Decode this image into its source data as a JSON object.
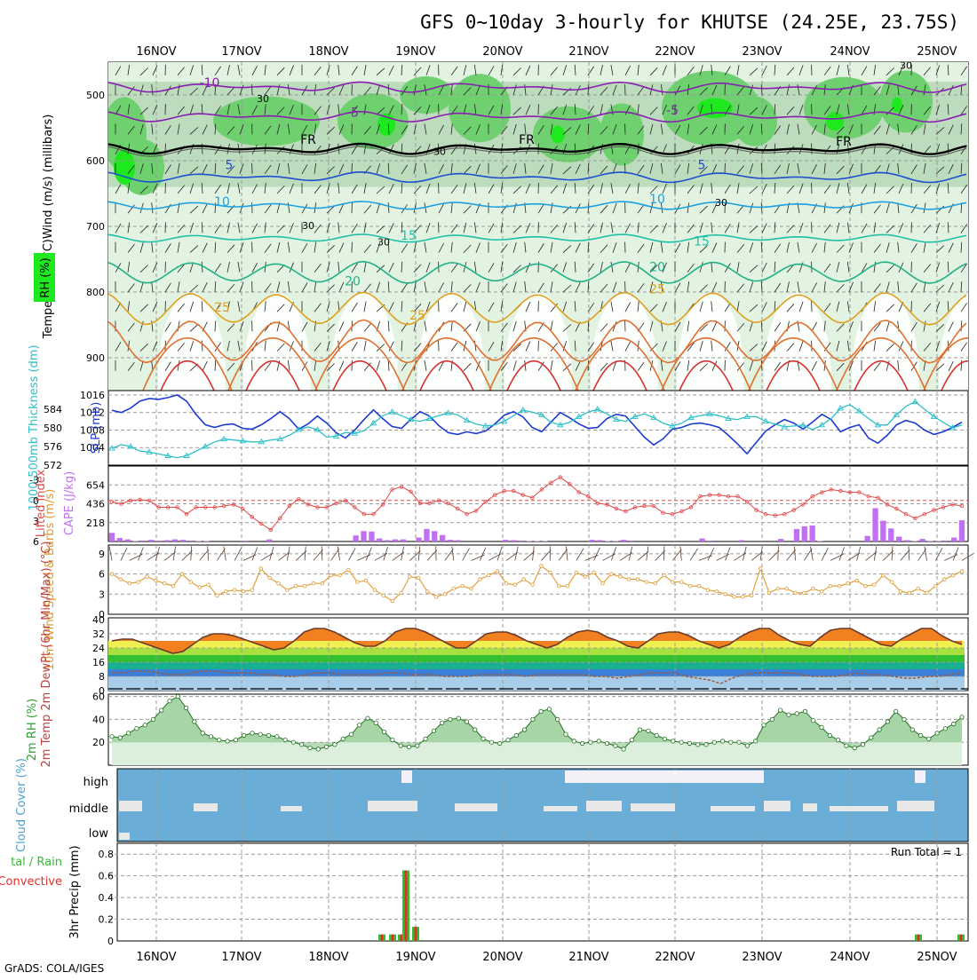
{
  "header": {
    "title": "GFS 0~10day 3-hourly for KHUTSE (24.25E, 23.75S)",
    "footer": "GrADS: COLA/IGES",
    "run_total": "Run Total = 1"
  },
  "colors": {
    "rh_light": "#e2f3e2",
    "rh_mid": "#b4d4b4",
    "rh_high": "#6fd06f",
    "rh_max": "#1ee81e",
    "slp": "#1c3ad0",
    "thickness": "#2cc0c8",
    "lifted_index": "#e04848",
    "cape": "#c070f0",
    "wind_speed": "#e09a30",
    "barb": "#5a3e30",
    "rh2m": "#7cc07c",
    "cloud": "#6aaed8",
    "precip_total": "#30c030",
    "precip_conv": "#e03030",
    "grid": "#9a9a9a"
  },
  "chart_data": [
    {
      "type": "heatmap",
      "name": "upper-air",
      "ylabel": "Temperature (°C)Wind (m/s)  (millibars)",
      "legend": "RH (%)",
      "ylim": [
        950,
        450
      ],
      "yticks": [
        "500",
        "600",
        "700",
        "800",
        "900"
      ],
      "xticks": [
        "16NOV",
        "17NOV",
        "18NOV",
        "19NOV",
        "20NOV",
        "21NOV",
        "22NOV",
        "23NOV",
        "24NOV",
        "25NOV"
      ],
      "temp_contour_labels": [
        "-10",
        "-5",
        "-5",
        "FR",
        "FR",
        "FR",
        "5",
        "5",
        "10",
        "10",
        "15",
        "15",
        "20",
        "20",
        "25",
        "25",
        "25",
        "30",
        "30",
        "30",
        "30",
        "30",
        "30"
      ],
      "isotherms": [
        {
          "label": "-10",
          "pressure": 488,
          "color": "#8a1eb0"
        },
        {
          "label": "-5",
          "pressure": 533,
          "color": "#8a1eb0"
        },
        {
          "label": "FR",
          "pressure": 582,
          "color": "#000000"
        },
        {
          "label": "5",
          "pressure": 625,
          "color": "#1e50d0"
        },
        {
          "label": "10",
          "pressure": 668,
          "color": "#1ea0e0"
        },
        {
          "label": "15",
          "pressure": 718,
          "color": "#20c0a8"
        },
        {
          "label": "20",
          "pressure": 770,
          "color": "#20b088"
        },
        {
          "label": "25",
          "pressure": 825,
          "color": "#e0a020"
        },
        {
          "label": "30",
          "pressure": 875,
          "color": "#e07030"
        }
      ]
    },
    {
      "type": "line",
      "name": "slp-thickness",
      "y_left_label": "1000-500mb Thickness (dm)",
      "y_left_ticks": [
        "584",
        "580",
        "576",
        "572"
      ],
      "y_left_range": [
        572,
        588
      ],
      "y_right_label": "SLP (mb)",
      "y_right_ticks": [
        "1016",
        "1012",
        "1008",
        "1004"
      ],
      "y_right_range": [
        1000,
        1017
      ],
      "series": [
        {
          "name": "SLP (mb)",
          "values": [
            1012.5,
            1012.0,
            1013.0,
            1014.6,
            1015.2,
            1015.0,
            1015.4,
            1016.0,
            1014.6,
            1011.6,
            1009.2,
            1008.6,
            1009.2,
            1009.4,
            1008.4,
            1008.2,
            1009.2,
            1010.6,
            1012.2,
            1010.6,
            1008.2,
            1009.4,
            1011.2,
            1009.6,
            1007.4,
            1006.2,
            1008.0,
            1010.4,
            1012.6,
            1010.6,
            1008.8,
            1008.4,
            1010.4,
            1012.2,
            1011.2,
            1009.0,
            1007.4,
            1007.0,
            1007.6,
            1007.2,
            1007.8,
            1009.4,
            1011.4,
            1012.2,
            1011.0,
            1008.6,
            1007.6,
            1009.8,
            1012.0,
            1010.8,
            1009.4,
            1008.4,
            1008.6,
            1010.6,
            1011.6,
            1011.2,
            1008.8,
            1006.4,
            1004.6,
            1006.0,
            1008.2,
            1008.6,
            1009.4,
            1009.6,
            1009.2,
            1008.6,
            1006.8,
            1004.8,
            1002.6,
            1005.2,
            1007.8,
            1009.2,
            1010.4,
            1009.6,
            1008.2,
            1009.8,
            1011.6,
            1010.4,
            1007.6,
            1008.6,
            1009.2,
            1006.2,
            1005.0,
            1006.8,
            1009.2,
            1010.2,
            1009.6,
            1008.0,
            1007.0,
            1007.6,
            1008.6,
            1009.8
          ]
        },
        {
          "name": "1000-500mb Thickness (dm)",
          "values": [
            575.6,
            576.4,
            576.0,
            575.0,
            574.8,
            574.4,
            574.0,
            573.6,
            574.0,
            575.0,
            576.0,
            577.0,
            577.6,
            577.4,
            577.2,
            577.0,
            577.0,
            577.4,
            577.6,
            578.4,
            579.6,
            580.2,
            579.6,
            578.0,
            578.2,
            579.0,
            578.8,
            579.4,
            581.0,
            582.6,
            583.4,
            582.6,
            581.8,
            581.4,
            582.0,
            582.6,
            583.2,
            582.8,
            581.6,
            580.8,
            580.4,
            580.6,
            581.4,
            582.6,
            583.8,
            583.4,
            582.8,
            581.2,
            580.6,
            581.2,
            582.4,
            583.4,
            584.0,
            583.0,
            581.8,
            581.4,
            582.4,
            583.0,
            582.2,
            581.0,
            580.4,
            581.0,
            582.2,
            582.6,
            583.0,
            582.6,
            582.0,
            581.8,
            582.4,
            582.4,
            581.4,
            580.8,
            580.2,
            580.4,
            580.6,
            579.6,
            580.6,
            582.0,
            584.2,
            585.0,
            583.6,
            582.0,
            580.6,
            580.6,
            582.8,
            584.6,
            585.6,
            584.0,
            582.4,
            581.2,
            580.0,
            580.6
          ]
        }
      ]
    },
    {
      "type": "bar",
      "name": "lifted-index-cape",
      "y_left_label": "Lifted Index",
      "y_left_ticks": [
        "-3",
        "0",
        "3",
        "6"
      ],
      "y_right_label": "CAPE (J/kg)",
      "y_right_ticks": [
        "654",
        "436",
        "218"
      ],
      "series": [
        {
          "name": "Lifted Index",
          "values": [
            0.2,
            0.5,
            0.0,
            -0.1,
            0.0,
            1.0,
            1.0,
            1.0,
            2.0,
            1.0,
            1.0,
            1.0,
            0.8,
            0.6,
            1.2,
            2.4,
            3.4,
            4.3,
            2.6,
            0.8,
            -0.2,
            0.6,
            1.0,
            1.0,
            0.4,
            0.0,
            1.0,
            2.0,
            2.0,
            0.6,
            -1.6,
            -2.0,
            -1.3,
            0.4,
            0.4,
            0.0,
            0.4,
            1.2,
            2.0,
            1.5,
            0.2,
            -0.8,
            -1.4,
            -1.4,
            -0.8,
            -0.4,
            -1.6,
            -2.6,
            -3.4,
            -2.4,
            -1.2,
            -0.6,
            0.4,
            0.6,
            1.2,
            1.6,
            1.0,
            0.8,
            0.8,
            1.8,
            2.0,
            1.6,
            1.0,
            -0.6,
            -0.8,
            -0.8,
            -0.6,
            -0.6,
            0.2,
            1.4,
            2.0,
            2.2,
            2.0,
            1.4,
            0.6,
            -0.6,
            -1.2,
            -1.6,
            -1.4,
            -1.2,
            -1.2,
            -0.6,
            -0.4,
            0.6,
            1.2,
            2.0,
            2.6,
            2.0,
            1.4,
            1.0,
            0.6,
            0.8
          ]
        },
        {
          "name": "CAPE (J/kg)",
          "values": [
            100,
            40,
            25,
            5,
            10,
            20,
            10,
            15,
            25,
            20,
            10,
            5,
            5,
            0,
            0,
            0,
            0,
            10,
            0,
            0,
            25,
            0,
            0,
            0,
            0,
            0,
            0,
            0,
            0,
            0,
            0,
            70,
            120,
            115,
            35,
            15,
            25,
            25,
            0,
            45,
            145,
            120,
            75,
            20,
            15,
            0,
            0,
            0,
            0,
            0,
            20,
            15,
            10,
            5,
            5,
            5,
            0,
            0,
            0,
            0,
            0,
            20,
            15,
            5,
            5,
            20,
            10,
            0,
            0,
            0,
            0,
            0,
            0,
            0,
            0,
            35,
            10,
            0,
            0,
            0,
            15,
            0,
            0,
            0,
            0,
            30,
            0,
            145,
            175,
            185,
            5,
            0,
            0,
            0,
            0,
            0,
            65,
            385,
            240,
            150,
            55,
            15,
            5,
            30,
            5,
            5,
            10,
            45,
            245
          ]
        }
      ]
    },
    {
      "type": "line",
      "name": "10m-wind",
      "ylabel": "10m Wind Speed & Barbs (m/s)",
      "yticks": [
        "9",
        "6",
        "3",
        "0"
      ],
      "ylim": [
        0,
        10
      ],
      "series": [
        {
          "name": "10m Wind Speed (m/s)",
          "values": [
            6.0,
            5.2,
            4.6,
            4.8,
            5.6,
            5.0,
            4.6,
            4.2,
            6.0,
            4.8,
            4.0,
            4.4,
            2.8,
            3.4,
            3.6,
            3.4,
            3.6,
            6.8,
            5.4,
            4.6,
            3.6,
            4.2,
            4.2,
            4.6,
            4.6,
            5.8,
            5.8,
            6.6,
            4.8,
            5.0,
            3.6,
            2.8,
            2.0,
            3.2,
            5.6,
            5.4,
            3.4,
            2.6,
            3.0,
            3.8,
            4.2,
            3.8,
            5.2,
            5.8,
            6.4,
            4.6,
            4.4,
            5.2,
            4.4,
            7.2,
            6.2,
            4.2,
            4.2,
            6.2,
            5.6,
            6.2,
            4.6,
            6.0,
            5.6,
            5.2,
            5.2,
            4.8,
            4.6,
            5.8,
            4.8,
            4.8,
            4.2,
            4.2,
            3.6,
            3.4,
            3.0,
            2.6,
            2.6,
            2.8,
            6.8,
            3.2,
            3.8,
            3.8,
            3.2,
            3.2,
            3.8,
            3.4,
            4.2,
            4.2,
            4.6,
            5.0,
            4.2,
            4.4,
            5.8,
            4.8,
            3.4,
            3.2,
            3.8,
            3.2,
            4.2,
            5.2,
            5.8,
            6.4
          ]
        }
      ]
    },
    {
      "type": "area",
      "name": "2m-temp",
      "ylabel": "2m Temp 2m DewPt (6hr Min/Max) (°C)",
      "yticks": [
        "40",
        "32",
        "24",
        "16",
        "8",
        "0"
      ],
      "ylim": [
        0,
        40
      ],
      "series": [
        {
          "name": "2m Temp",
          "values": [
            28,
            29,
            29,
            27,
            25,
            23,
            21,
            22,
            26,
            30,
            32,
            32,
            31,
            29,
            27,
            25,
            23,
            24,
            28,
            33,
            35,
            35,
            33,
            30,
            27,
            25,
            25,
            28,
            33,
            35,
            35,
            33,
            30,
            27,
            24,
            24,
            28,
            32,
            33,
            33,
            31,
            28,
            26,
            24,
            26,
            30,
            33,
            34,
            33,
            30,
            28,
            25,
            24,
            28,
            32,
            33,
            33,
            31,
            28,
            26,
            24,
            26,
            30,
            33,
            35,
            35,
            31,
            28,
            26,
            25,
            30,
            34,
            35,
            35,
            32,
            29,
            26,
            25,
            29,
            32,
            35,
            35,
            31,
            28,
            26
          ]
        },
        {
          "name": "2m DewPt",
          "values": [
            10,
            10,
            11,
            11,
            10,
            9,
            9,
            10,
            11,
            11,
            10,
            10,
            10,
            9,
            9,
            8,
            8,
            9,
            10,
            10,
            9,
            9,
            9,
            9,
            10,
            10,
            9,
            9,
            9,
            8,
            8,
            8,
            9,
            9,
            9,
            9,
            8,
            9,
            9,
            9,
            9,
            9,
            8,
            8,
            7,
            8,
            9,
            10,
            10,
            10,
            8,
            7,
            6,
            4,
            7,
            9,
            10,
            10,
            10,
            10,
            9,
            8,
            8,
            8,
            9,
            10,
            9,
            9,
            8,
            7,
            7,
            8,
            8,
            9,
            10
          ]
        }
      ]
    },
    {
      "type": "area",
      "name": "2m-rh",
      "ylabel": "2m RH (%)",
      "yticks": [
        "60",
        "40",
        "20"
      ],
      "ylim": [
        0,
        60
      ],
      "series": [
        {
          "name": "2m RH (%)",
          "values": [
            25,
            24,
            28,
            32,
            35,
            40,
            48,
            56,
            60,
            50,
            38,
            28,
            25,
            22,
            21,
            22,
            26,
            28,
            27,
            26,
            25,
            22,
            20,
            18,
            15,
            14,
            16,
            18,
            23,
            27,
            35,
            41,
            37,
            29,
            22,
            17,
            16,
            17,
            23,
            30,
            37,
            40,
            41,
            38,
            31,
            23,
            20,
            19,
            22,
            26,
            31,
            40,
            47,
            49,
            40,
            27,
            21,
            19,
            20,
            21,
            19,
            17,
            14,
            22,
            31,
            30,
            26,
            23,
            21,
            20,
            19,
            18,
            18,
            20,
            21,
            20,
            20,
            17,
            21,
            35,
            40,
            48,
            44,
            45,
            47,
            39,
            33,
            26,
            22,
            17,
            15,
            18,
            24,
            31,
            38,
            47,
            40,
            31,
            26,
            23,
            28,
            32,
            36,
            42
          ]
        }
      ]
    },
    {
      "type": "bar",
      "name": "cloud-cover",
      "ylabel": "Cloud Cover (%)",
      "categories": [
        "high",
        "middle",
        "low"
      ]
    },
    {
      "type": "bar",
      "name": "precip",
      "ylabel": "3hr Precip (mm)",
      "legend": "Total / Rain Convective",
      "yticks": [
        "0.8",
        "0.6",
        "0.4",
        "0.2",
        "0"
      ],
      "ylim": [
        0,
        0.9
      ],
      "series": [
        {
          "name": "Total",
          "values": [
            0.06,
            0.06,
            0.06,
            0.65,
            0.13,
            0.06,
            0.06
          ]
        },
        {
          "name": "Convective",
          "values": [
            0.06,
            0.06,
            0.06,
            0.65,
            0.13,
            0.06,
            0.06
          ]
        }
      ],
      "bar_dates": [
        "18NOV",
        "18NOV",
        "18NOV",
        "19NOV",
        "19NOV",
        "24NOV",
        "25NOV"
      ]
    }
  ]
}
